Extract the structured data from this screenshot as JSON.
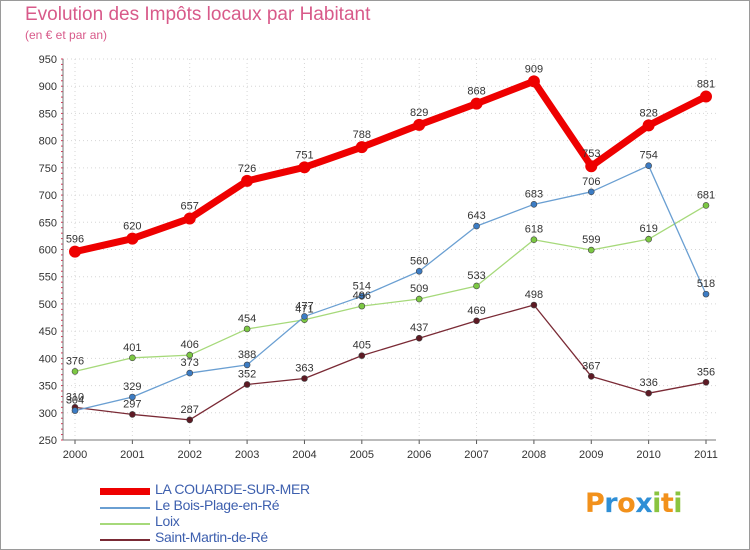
{
  "chart_data": {
    "type": "line",
    "title": "Evolution des Impôts locaux par Habitant",
    "subtitle": "(en € et par an)",
    "xlabel": "",
    "ylabel": "",
    "ylim": [
      250,
      950
    ],
    "yticks": [
      "250",
      "300",
      "350",
      "400",
      "450",
      "500",
      "550",
      "600",
      "650",
      "700",
      "750",
      "800",
      "850",
      "900",
      "950"
    ],
    "grid": true,
    "legend_position": "bottom-left",
    "x": [
      "2000",
      "2001",
      "2002",
      "2003",
      "2004",
      "2005",
      "2006",
      "2007",
      "2008",
      "2009",
      "2010",
      "2011"
    ],
    "series": [
      {
        "name": "LA COUARDE-SUR-MER",
        "color": "#ee0000",
        "point_color": "#ee0000",
        "values": [
          596,
          620,
          657,
          726,
          751,
          788,
          829,
          868,
          909,
          753,
          828,
          881
        ]
      },
      {
        "name": "Le Bois-Plage-en-Ré",
        "color": "#6a9fd2",
        "point_color": "#3c7cc4",
        "values": [
          304,
          329,
          373,
          388,
          477,
          514,
          560,
          643,
          683,
          706,
          754,
          518
        ]
      },
      {
        "name": "Loix",
        "color": "#a6d97a",
        "point_color": "#7cc843",
        "values": [
          376,
          401,
          406,
          454,
          471,
          496,
          509,
          533,
          618,
          599,
          619,
          681
        ]
      },
      {
        "name": "Saint-Martin-de-Ré",
        "color": "#7a2a35",
        "point_color": "#5e1a24",
        "values": [
          310,
          297,
          287,
          352,
          363,
          405,
          437,
          469,
          498,
          367,
          336,
          356
        ]
      }
    ]
  },
  "logo": {
    "letters": [
      "P",
      "r",
      "o",
      "x",
      "i",
      "t",
      "i"
    ],
    "colors": [
      "#f2911b",
      "#2f8fd6",
      "#f2911b",
      "#2f8fd6",
      "#8ac43f",
      "#f2911b",
      "#8ac43f"
    ]
  }
}
